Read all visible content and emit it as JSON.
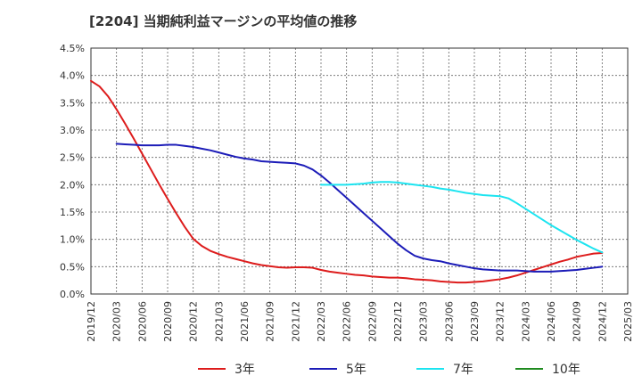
{
  "chart_data": {
    "type": "line",
    "title": "[2204]  当期純利益マージンの平均値の推移",
    "xlabel": "",
    "ylabel": "",
    "ylim": [
      0,
      0.045
    ],
    "grid": true,
    "legend_position": "bottom",
    "x_ticks": [
      "2019/12",
      "2020/03",
      "2020/06",
      "2020/09",
      "2020/12",
      "2021/03",
      "2021/06",
      "2021/09",
      "2021/12",
      "2022/03",
      "2022/06",
      "2022/09",
      "2022/12",
      "2023/03",
      "2023/06",
      "2023/09",
      "2023/12",
      "2024/03",
      "2024/06",
      "2024/09",
      "2024/12",
      "2025/03"
    ],
    "y_ticks": [
      "0.0%",
      "0.5%",
      "1.0%",
      "1.5%",
      "2.0%",
      "2.5%",
      "3.0%",
      "3.5%",
      "4.0%",
      "4.5%"
    ],
    "series": [
      {
        "name": "3年",
        "color": "#dd1c1c",
        "x": [
          "2019/12",
          "2020/01",
          "2020/02",
          "2020/03",
          "2020/04",
          "2020/05",
          "2020/06",
          "2020/07",
          "2020/08",
          "2020/09",
          "2020/10",
          "2020/11",
          "2020/12",
          "2021/01",
          "2021/02",
          "2021/03",
          "2021/04",
          "2021/05",
          "2021/06",
          "2021/07",
          "2021/08",
          "2021/09",
          "2021/10",
          "2021/11",
          "2021/12",
          "2022/01",
          "2022/02",
          "2022/03",
          "2022/04",
          "2022/05",
          "2022/06",
          "2022/07",
          "2022/08",
          "2022/09",
          "2022/10",
          "2022/11",
          "2022/12",
          "2023/01",
          "2023/02",
          "2023/03",
          "2023/04",
          "2023/05",
          "2023/06",
          "2023/07",
          "2023/08",
          "2023/09",
          "2023/10",
          "2023/11",
          "2023/12",
          "2024/01",
          "2024/02",
          "2024/03",
          "2024/04",
          "2024/05",
          "2024/06",
          "2024/07",
          "2024/08",
          "2024/09",
          "2024/10",
          "2024/11",
          "2024/12"
        ],
        "y": [
          0.039,
          0.038,
          0.0362,
          0.0338,
          0.0312,
          0.0285,
          0.0257,
          0.0229,
          0.0201,
          0.0174,
          0.0148,
          0.0123,
          0.0101,
          0.0088,
          0.0079,
          0.0073,
          0.0068,
          0.0064,
          0.006,
          0.0056,
          0.0053,
          0.0051,
          0.0049,
          0.0048,
          0.0049,
          0.0049,
          0.0048,
          0.0044,
          0.0041,
          0.0039,
          0.0037,
          0.0035,
          0.0034,
          0.0032,
          0.0031,
          0.003,
          0.003,
          0.0029,
          0.0027,
          0.0026,
          0.0025,
          0.0023,
          0.0022,
          0.0021,
          0.0021,
          0.0022,
          0.0023,
          0.0025,
          0.0027,
          0.003,
          0.0034,
          0.0039,
          0.0044,
          0.0049,
          0.0054,
          0.0059,
          0.0063,
          0.0068,
          0.0071,
          0.0074,
          0.0075
        ]
      },
      {
        "name": "5年",
        "color": "#1c1cb8",
        "x": [
          "2020/03",
          "2020/04",
          "2020/05",
          "2020/06",
          "2020/07",
          "2020/08",
          "2020/09",
          "2020/10",
          "2020/11",
          "2020/12",
          "2021/01",
          "2021/02",
          "2021/03",
          "2021/04",
          "2021/05",
          "2021/06",
          "2021/07",
          "2021/08",
          "2021/09",
          "2021/10",
          "2021/11",
          "2021/12",
          "2022/01",
          "2022/02",
          "2022/03",
          "2022/04",
          "2022/05",
          "2022/06",
          "2022/07",
          "2022/08",
          "2022/09",
          "2022/10",
          "2022/11",
          "2022/12",
          "2023/01",
          "2023/02",
          "2023/03",
          "2023/04",
          "2023/05",
          "2023/06",
          "2023/07",
          "2023/08",
          "2023/09",
          "2023/10",
          "2023/11",
          "2023/12",
          "2024/01",
          "2024/02",
          "2024/03",
          "2024/04",
          "2024/05",
          "2024/06",
          "2024/07",
          "2024/08",
          "2024/09",
          "2024/10",
          "2024/11",
          "2024/12"
        ],
        "y": [
          0.0275,
          0.0274,
          0.0273,
          0.0272,
          0.0272,
          0.0272,
          0.0273,
          0.0273,
          0.0271,
          0.0269,
          0.0266,
          0.0263,
          0.0259,
          0.0255,
          0.0251,
          0.0248,
          0.0246,
          0.0243,
          0.0242,
          0.0241,
          0.024,
          0.0239,
          0.0235,
          0.0228,
          0.0217,
          0.0204,
          0.019,
          0.0176,
          0.0162,
          0.0148,
          0.0134,
          0.012,
          0.0106,
          0.0092,
          0.008,
          0.007,
          0.0065,
          0.0062,
          0.006,
          0.0056,
          0.0053,
          0.005,
          0.0047,
          0.0045,
          0.0044,
          0.0043,
          0.0043,
          0.0043,
          0.0042,
          0.0041,
          0.0041,
          0.0041,
          0.0042,
          0.0043,
          0.0044,
          0.0046,
          0.0048,
          0.005
        ]
      },
      {
        "name": "7年",
        "color": "#1ce4f0",
        "x": [
          "2022/03",
          "2022/04",
          "2022/05",
          "2022/06",
          "2022/07",
          "2022/08",
          "2022/09",
          "2022/10",
          "2022/11",
          "2022/12",
          "2023/01",
          "2023/02",
          "2023/03",
          "2023/04",
          "2023/05",
          "2023/06",
          "2023/07",
          "2023/08",
          "2023/09",
          "2023/10",
          "2023/11",
          "2023/12",
          "2024/01",
          "2024/02",
          "2024/03",
          "2024/04",
          "2024/05",
          "2024/06",
          "2024/07",
          "2024/08",
          "2024/09",
          "2024/10",
          "2024/11",
          "2024/12"
        ],
        "y": [
          0.02,
          0.02,
          0.02,
          0.02,
          0.0201,
          0.0202,
          0.0204,
          0.0205,
          0.0205,
          0.0204,
          0.0202,
          0.02,
          0.0198,
          0.0196,
          0.0193,
          0.0191,
          0.0188,
          0.0185,
          0.0183,
          0.0181,
          0.018,
          0.0179,
          0.0175,
          0.0166,
          0.0156,
          0.0146,
          0.0136,
          0.0126,
          0.0117,
          0.0108,
          0.0099,
          0.0091,
          0.0083,
          0.0076
        ]
      },
      {
        "name": "10年",
        "color": "#1f8b1f",
        "x": [],
        "y": []
      }
    ]
  }
}
